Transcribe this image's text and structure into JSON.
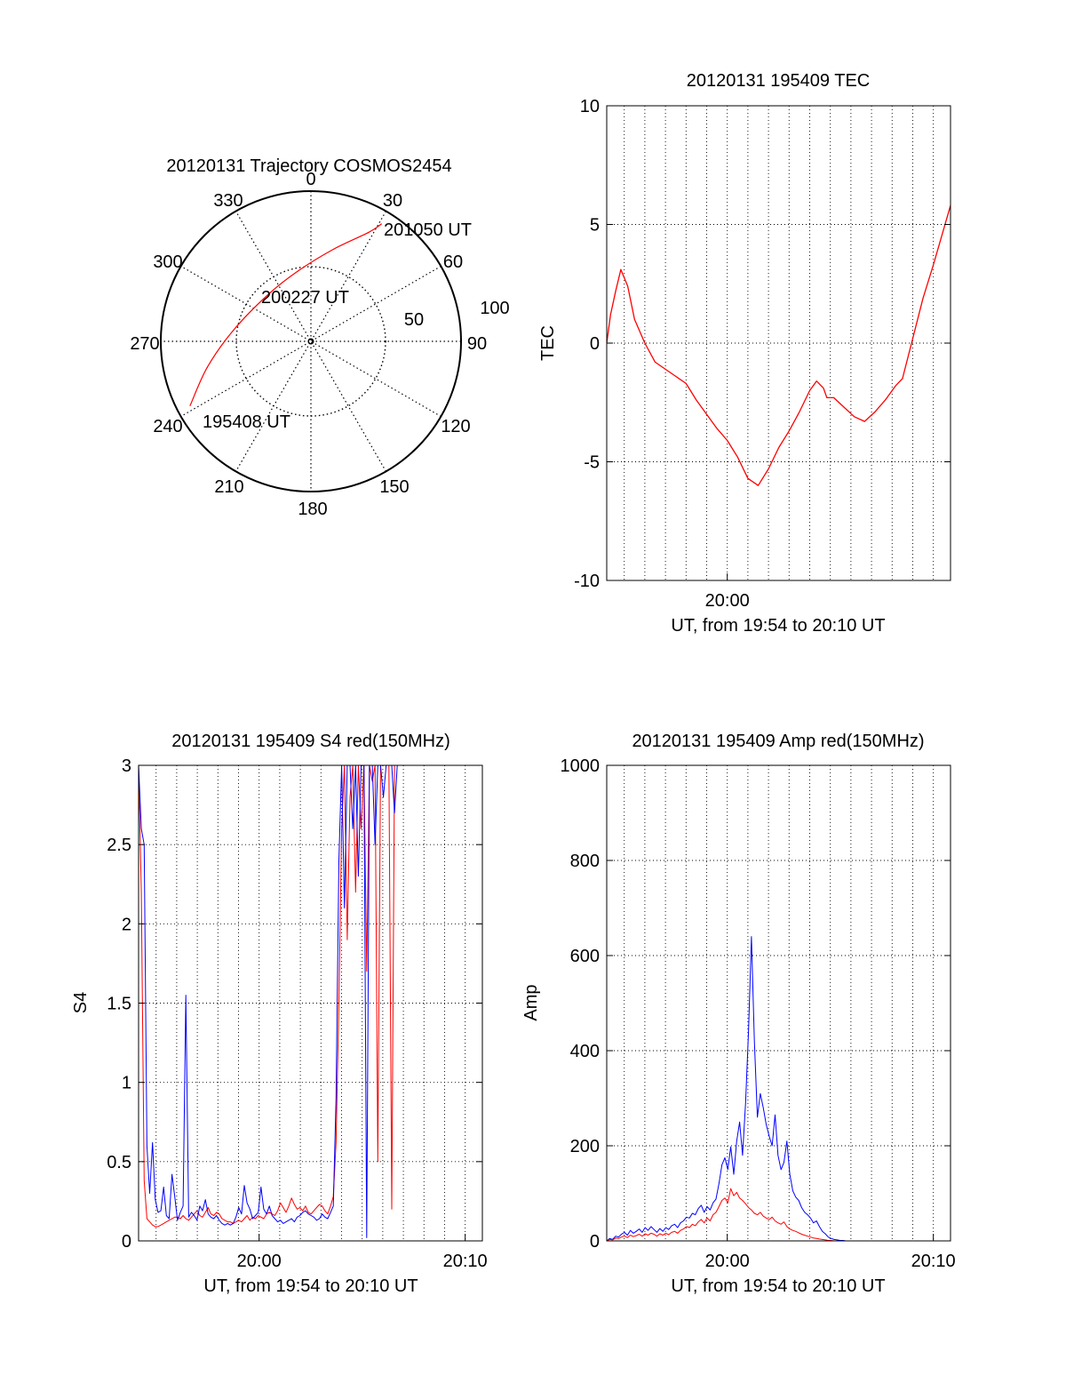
{
  "colors": {
    "red": "#ff0000",
    "blue": "#0000ff",
    "axis": "#000000"
  },
  "chart_data": [
    {
      "id": "trajectory",
      "type": "polar",
      "title": "20120131 Trajectory COSMOS2454",
      "azimuth_labels": [
        "0",
        "30",
        "60",
        "90",
        "120",
        "150",
        "180",
        "210",
        "240",
        "270",
        "300",
        "330"
      ],
      "radius_labels": [
        "50",
        "100"
      ],
      "series": [
        {
          "color": "#ff0000",
          "points": [
            {
              "az": 242,
              "elev": 8,
              "label": "195408 UT"
            },
            {
              "az": 256,
              "elev": 26
            },
            {
              "az": 278,
              "elev": 43
            },
            {
              "az": 318,
              "elev": 52
            },
            {
              "az": 350,
              "elev": 47
            },
            {
              "az": 14,
              "elev": 33
            },
            {
              "az": 28,
              "elev": 16
            },
            {
              "az": 31,
              "elev": 8,
              "label": "201050 UT"
            }
          ]
        }
      ],
      "annotations": [
        "200227 UT"
      ]
    },
    {
      "id": "tec",
      "type": "line",
      "title": "20120131 195409 TEC",
      "xlabel": "UT, from 19:54 to 20:10 UT",
      "ylabel": "TEC",
      "xlim": [
        "19:54:09",
        "20:10:50"
      ],
      "ylim": [
        -10,
        10
      ],
      "x_ticks": [
        "20:00"
      ],
      "y_ticks": [
        "10",
        "5",
        "0",
        "-5",
        "-10"
      ],
      "series": [
        {
          "color": "#ff0000",
          "x": [
            "19:54:09",
            "19:54:20",
            "19:54:35",
            "19:54:50",
            "19:55:10",
            "19:55:30",
            "19:56:00",
            "19:56:30",
            "19:57:00",
            "19:57:30",
            "19:58:00",
            "19:58:30",
            "19:59:00",
            "19:59:30",
            "20:00:00",
            "20:00:30",
            "20:01:00",
            "20:01:30",
            "20:02:00",
            "20:02:30",
            "20:03:00",
            "20:03:30",
            "20:04:00",
            "20:04:20",
            "20:04:40",
            "20:04:50",
            "20:05:10",
            "20:05:40",
            "20:06:10",
            "20:06:40",
            "20:07:10",
            "20:07:40",
            "20:08:10",
            "20:08:30",
            "20:09:00",
            "20:09:30",
            "20:10:00",
            "20:10:30",
            "20:10:50"
          ],
          "y": [
            0,
            1.2,
            2.2,
            3.1,
            2.4,
            1,
            0,
            -0.8,
            -1.1,
            -1.4,
            -1.7,
            -2.4,
            -3.0,
            -3.6,
            -4.1,
            -4.8,
            -5.7,
            -6.0,
            -5.3,
            -4.4,
            -3.7,
            -2.9,
            -2.0,
            -1.6,
            -1.9,
            -2.3,
            -2.3,
            -2.7,
            -3.1,
            -3.3,
            -2.9,
            -2.4,
            -1.8,
            -1.5,
            0.2,
            1.9,
            3.3,
            4.8,
            5.8
          ]
        }
      ]
    },
    {
      "id": "s4",
      "type": "line",
      "title": "20120131 195409 S4 red(150MHz)",
      "xlabel": "UT, from 19:54 to 20:10 UT",
      "ylabel": "S4",
      "xlim": [
        "19:54:09",
        "20:10:50"
      ],
      "ylim": [
        0,
        3
      ],
      "x_ticks": [
        "20:00",
        "20:10"
      ],
      "y_ticks": [
        "3",
        "2.5",
        "2",
        "1.5",
        "1",
        "0.5",
        "0"
      ],
      "series": [
        {
          "color": "#ff0000",
          "x_start": "19:54:09",
          "x_step_sec": 8.1,
          "y": [
            3.0,
            2.2,
            0.38,
            0.14,
            0.12,
            0.1,
            0.09,
            0.09,
            0.1,
            0.11,
            0.12,
            0.13,
            0.14,
            0.15,
            0.15,
            0.14,
            0.16,
            0.14,
            0.13,
            0.15,
            0.17,
            0.19,
            0.16,
            0.15,
            0.18,
            0.21,
            0.17,
            0.16,
            0.18,
            0.17,
            0.14,
            0.13,
            0.12,
            0.12,
            0.11,
            0.12,
            0.13,
            0.12,
            0.14,
            0.16,
            0.13,
            0.15,
            0.14,
            0.16,
            0.15,
            0.14,
            0.17,
            0.18,
            0.17,
            0.16,
            0.19,
            0.24,
            0.21,
            0.18,
            0.22,
            0.27,
            0.23,
            0.2,
            0.21,
            0.19,
            0.22,
            0.18,
            0.17,
            0.19,
            0.21,
            0.23,
            0.22,
            0.19,
            0.17,
            0.22,
            0.28,
            0.62,
            1.5,
            2.6,
            3.0,
            1.9,
            2.8,
            3.0,
            2.2,
            3.0,
            2.6,
            3.0,
            1.7,
            3.0,
            2.9,
            3.0,
            0.5,
            3.0,
            3.0,
            3.0,
            3.0,
            0.2,
            3.0,
            3.0
          ]
        },
        {
          "color": "#0000ff",
          "x_start": "19:54:09",
          "x_step_sec": 8.1,
          "y": [
            3.0,
            2.6,
            2.5,
            0.6,
            0.3,
            0.62,
            0.26,
            0.18,
            0.19,
            0.34,
            0.16,
            0.14,
            0.42,
            0.28,
            0.13,
            0.18,
            0.22,
            1.55,
            0.15,
            0.18,
            0.16,
            0.13,
            0.22,
            0.19,
            0.26,
            0.17,
            0.15,
            0.14,
            0.16,
            0.13,
            0.11,
            0.1,
            0.11,
            0.1,
            0.11,
            0.15,
            0.21,
            0.17,
            0.35,
            0.24,
            0.2,
            0.14,
            0.16,
            0.18,
            0.34,
            0.2,
            0.17,
            0.22,
            0.16,
            0.14,
            0.12,
            0.13,
            0.11,
            0.12,
            0.13,
            0.14,
            0.12,
            0.15,
            0.16,
            0.18,
            0.19,
            0.17,
            0.16,
            0.15,
            0.13,
            0.14,
            0.17,
            0.15,
            0.14,
            0.18,
            0.22,
            0.9,
            2.4,
            3.0,
            2.1,
            3.0,
            3.0,
            2.6,
            3.0,
            2.3,
            3.0,
            3.0,
            0.02,
            3.0,
            3.0,
            2.5,
            3.0,
            3.0,
            2.8,
            3.0,
            3.0,
            3.0,
            2.7,
            3.0
          ]
        }
      ]
    },
    {
      "id": "amp",
      "type": "line",
      "title": "20120131 195409 Amp red(150MHz)",
      "xlabel": "UT, from 19:54 to 20:10 UT",
      "ylabel": "Amp",
      "xlim": [
        "19:54:09",
        "20:10:50"
      ],
      "ylim": [
        0,
        1000
      ],
      "x_ticks": [
        "20:00",
        "20:10"
      ],
      "y_ticks": [
        "1000",
        "800",
        "600",
        "400",
        "200",
        "0"
      ],
      "series": [
        {
          "color": "#0000ff",
          "x_start": "19:54:09",
          "x_step_sec": 8.6,
          "y": [
            0,
            5,
            3,
            10,
            8,
            14,
            18,
            12,
            22,
            16,
            20,
            25,
            18,
            28,
            22,
            30,
            24,
            18,
            26,
            20,
            28,
            24,
            32,
            35,
            28,
            38,
            42,
            50,
            48,
            58,
            55,
            68,
            75,
            60,
            72,
            65,
            80,
            88,
            120,
            160,
            175,
            150,
            198,
            140,
            210,
            250,
            180,
            290,
            440,
            640,
            420,
            260,
            310,
            280,
            245,
            220,
            200,
            265,
            180,
            150,
            165,
            210,
            140,
            105,
            92,
            85,
            70,
            60,
            55,
            48,
            38,
            42,
            30,
            20,
            15,
            8,
            5,
            3,
            2,
            1,
            1,
            0,
            0,
            0,
            0,
            0,
            0,
            0,
            0,
            0,
            0,
            0,
            0,
            0,
            0,
            0,
            0,
            0,
            0,
            0,
            0,
            0,
            0,
            0,
            0,
            0,
            0,
            0,
            0,
            0,
            0,
            0,
            0,
            0,
            0,
            0
          ]
        },
        {
          "color": "#ff0000",
          "x_start": "19:54:09",
          "x_step_sec": 8.6,
          "y": [
            0,
            3,
            2,
            6,
            5,
            8,
            10,
            7,
            12,
            9,
            11,
            14,
            10,
            15,
            12,
            16,
            14,
            10,
            15,
            12,
            16,
            13,
            18,
            20,
            16,
            22,
            25,
            30,
            28,
            35,
            32,
            40,
            45,
            38,
            48,
            42,
            55,
            60,
            72,
            85,
            90,
            80,
            110,
            95,
            102,
            90,
            85,
            78,
            70,
            65,
            58,
            55,
            60,
            52,
            48,
            45,
            50,
            42,
            38,
            35,
            40,
            30,
            25,
            22,
            20,
            17,
            14,
            12,
            10,
            8,
            6,
            5,
            4,
            3,
            2,
            1,
            1,
            0,
            0,
            0,
            0,
            0,
            0,
            0,
            0,
            0,
            0,
            0,
            0,
            0,
            0,
            0,
            0,
            0,
            0,
            0,
            0,
            0,
            0,
            0,
            0,
            0,
            0,
            0,
            0,
            0,
            0,
            0,
            0,
            0,
            0,
            0,
            0,
            0,
            0,
            0,
            0
          ]
        }
      ]
    }
  ]
}
